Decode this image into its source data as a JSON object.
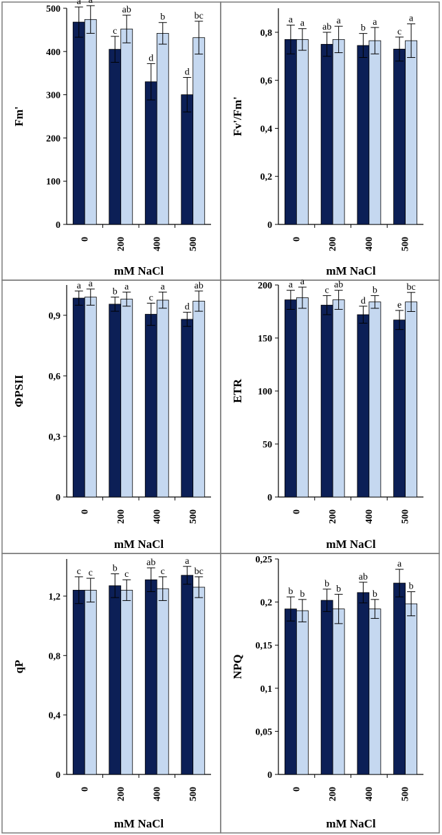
{
  "figure": {
    "colors": {
      "dark": "#0c1f56",
      "light": "#c5d8f0",
      "border": "#7a7a7a"
    }
  },
  "chart_data": [
    {
      "type": "bar",
      "ylabel": "Fm'",
      "xlabel": "mM NaCl",
      "categories": [
        "0",
        "200",
        "400",
        "500"
      ],
      "ylim": [
        0,
        500
      ],
      "yticks": [
        0,
        100,
        200,
        300,
        400,
        500
      ],
      "ytick_labels": [
        "0",
        "100",
        "200",
        "300",
        "400",
        "500"
      ],
      "series": [
        {
          "color": "dark",
          "values": [
            468,
            405,
            330,
            300
          ],
          "errors": [
            35,
            30,
            42,
            40
          ],
          "labels": [
            "a",
            "c",
            "d",
            "d"
          ]
        },
        {
          "color": "light",
          "values": [
            474,
            452,
            442,
            432
          ],
          "errors": [
            32,
            32,
            25,
            38
          ],
          "labels": [
            "a",
            "ab",
            "b",
            "bc"
          ]
        }
      ]
    },
    {
      "type": "bar",
      "ylabel": "Fv'/Fm'",
      "xlabel": "mM NaCl",
      "categories": [
        "0",
        "200",
        "400",
        "500"
      ],
      "ylim": [
        0,
        0.9
      ],
      "yticks": [
        0,
        0.2,
        0.4,
        0.6,
        0.8
      ],
      "ytick_labels": [
        "0",
        "0,2",
        "0,4",
        "0,6",
        "0,8"
      ],
      "series": [
        {
          "color": "dark",
          "values": [
            0.77,
            0.75,
            0.745,
            0.73
          ],
          "errors": [
            0.06,
            0.05,
            0.05,
            0.05
          ],
          "labels": [
            "a",
            "ab",
            "b",
            "c"
          ]
        },
        {
          "color": "light",
          "values": [
            0.77,
            0.77,
            0.765,
            0.765
          ],
          "errors": [
            0.045,
            0.055,
            0.055,
            0.07
          ],
          "labels": [
            "a",
            "a",
            "a",
            "a"
          ]
        }
      ]
    },
    {
      "type": "bar",
      "ylabel": "ΦPSII",
      "xlabel": "mM NaCl",
      "categories": [
        "0",
        "200",
        "400",
        "500"
      ],
      "ylim": [
        0,
        1.05
      ],
      "yticks": [
        0,
        0.3,
        0.6,
        0.9
      ],
      "ytick_labels": [
        "0",
        "0,3",
        "0,6",
        "0,9"
      ],
      "series": [
        {
          "color": "dark",
          "values": [
            0.985,
            0.955,
            0.905,
            0.88
          ],
          "errors": [
            0.035,
            0.035,
            0.055,
            0.035
          ],
          "labels": [
            "a",
            "b",
            "c",
            "d"
          ]
        },
        {
          "color": "light",
          "values": [
            0.99,
            0.98,
            0.975,
            0.97
          ],
          "errors": [
            0.04,
            0.035,
            0.04,
            0.05
          ],
          "labels": [
            "a",
            "a",
            "a",
            "ab"
          ]
        }
      ]
    },
    {
      "type": "bar",
      "ylabel": "ETR",
      "xlabel": "mM NaCl",
      "categories": [
        "0",
        "200",
        "400",
        "500"
      ],
      "ylim": [
        0,
        200
      ],
      "yticks": [
        0,
        50,
        100,
        150,
        200
      ],
      "ytick_labels": [
        "0",
        "50",
        "100",
        "150",
        "200"
      ],
      "series": [
        {
          "color": "dark",
          "values": [
            186,
            181,
            172,
            167
          ],
          "errors": [
            9,
            9,
            8,
            9
          ],
          "labels": [
            "a",
            "c",
            "d",
            "e"
          ]
        },
        {
          "color": "light",
          "values": [
            188,
            186,
            184,
            184
          ],
          "errors": [
            10,
            9,
            6,
            9
          ],
          "labels": [
            "a",
            "ab",
            "b",
            "bc"
          ]
        }
      ]
    },
    {
      "type": "bar",
      "ylabel": "qP",
      "xlabel": "mM NaCl",
      "categories": [
        "0",
        "200",
        "400",
        "500"
      ],
      "ylim": [
        0,
        1.45
      ],
      "yticks": [
        0,
        0.4,
        0.8,
        1.2
      ],
      "ytick_labels": [
        "0",
        "0,4",
        "0,8",
        "1,2"
      ],
      "series": [
        {
          "color": "dark",
          "values": [
            1.24,
            1.27,
            1.31,
            1.34
          ],
          "errors": [
            0.09,
            0.08,
            0.08,
            0.06
          ],
          "labels": [
            "c",
            "b",
            "ab",
            "a"
          ]
        },
        {
          "color": "light",
          "values": [
            1.24,
            1.24,
            1.25,
            1.26
          ],
          "errors": [
            0.08,
            0.07,
            0.08,
            0.07
          ],
          "labels": [
            "c",
            "c",
            "c",
            "bc"
          ]
        }
      ]
    },
    {
      "type": "bar",
      "ylabel": "NPQ",
      "xlabel": "mM NaCl",
      "categories": [
        "0",
        "200",
        "400",
        "500"
      ],
      "ylim": [
        0,
        0.25
      ],
      "yticks": [
        0,
        0.05,
        0.1,
        0.15,
        0.2,
        0.25
      ],
      "ytick_labels": [
        "0",
        "0,05",
        "0,1",
        "0,15",
        "0,2",
        "0,25"
      ],
      "series": [
        {
          "color": "dark",
          "values": [
            0.192,
            0.202,
            0.211,
            0.222
          ],
          "errors": [
            0.014,
            0.013,
            0.012,
            0.016
          ],
          "labels": [
            "b",
            "b",
            "ab",
            "a"
          ]
        },
        {
          "color": "light",
          "values": [
            0.19,
            0.192,
            0.192,
            0.198
          ],
          "errors": [
            0.013,
            0.017,
            0.011,
            0.014
          ],
          "labels": [
            "b",
            "b",
            "b",
            "b"
          ]
        }
      ]
    }
  ]
}
